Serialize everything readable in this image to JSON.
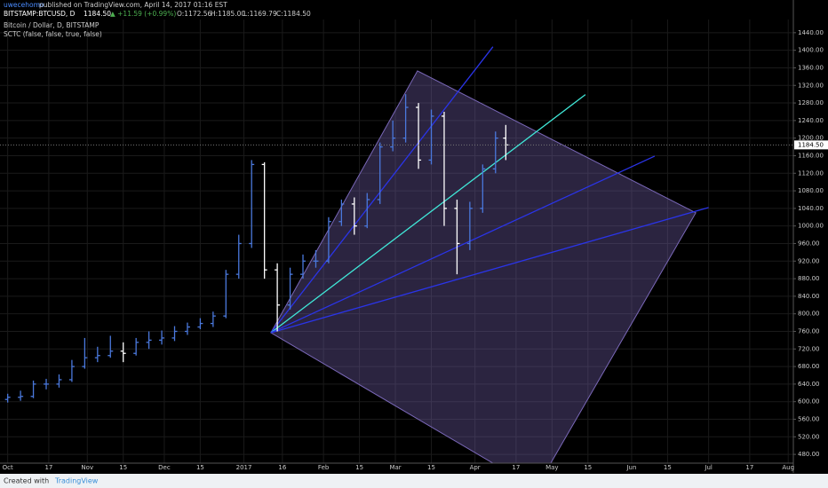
{
  "header": {
    "author": "uwecehomo",
    "published": "published on TradingView.com, April 14, 2017 01:16 EST",
    "symbol": "BITSTAMP:BTCUSD, D",
    "last": "1184.50",
    "change": "▲ +11.59 (+0.99%)",
    "open": "O:1172.56",
    "high": "H:1185.00",
    "low": "L:1169.79",
    "close": "C:1184.50",
    "name": "Bitcoin / Dollar, D, BITSTAMP",
    "indicator": "SCTC (false, false, true, false)"
  },
  "chart_data": {
    "type": "ohlc",
    "x": [
      0,
      5,
      10,
      15,
      20,
      25,
      30,
      35,
      40,
      45,
      50,
      55,
      60,
      65,
      70,
      75,
      80,
      85,
      90,
      95,
      100,
      105,
      110,
      115,
      120,
      125,
      130,
      135,
      140,
      145,
      150,
      155,
      160,
      165,
      170,
      175,
      180,
      185,
      190,
      194
    ],
    "open": [
      605,
      610,
      612,
      640,
      640,
      650,
      680,
      700,
      705,
      715,
      710,
      735,
      740,
      745,
      760,
      770,
      778,
      795,
      890,
      960,
      1140,
      900,
      820,
      890,
      920,
      920,
      1010,
      1050,
      1000,
      1060,
      1180,
      1200,
      1270,
      1150,
      1250,
      1040,
      960,
      1040,
      1130,
      1200
    ],
    "high": [
      618,
      625,
      648,
      652,
      662,
      695,
      745,
      725,
      750,
      735,
      745,
      760,
      762,
      772,
      780,
      790,
      805,
      900,
      980,
      1150,
      1145,
      915,
      905,
      935,
      945,
      1020,
      1060,
      1065,
      1075,
      1190,
      1240,
      1300,
      1280,
      1265,
      1260,
      1060,
      1055,
      1140,
      1215,
      1230
    ],
    "low": [
      598,
      602,
      608,
      628,
      632,
      645,
      675,
      690,
      700,
      690,
      705,
      720,
      730,
      738,
      752,
      765,
      770,
      790,
      880,
      950,
      880,
      760,
      810,
      880,
      905,
      915,
      1000,
      980,
      995,
      1050,
      1170,
      1190,
      1130,
      1140,
      1000,
      890,
      945,
      1030,
      1120,
      1150
    ],
    "close": [
      610,
      612,
      640,
      640,
      650,
      680,
      700,
      705,
      715,
      710,
      735,
      740,
      745,
      760,
      770,
      778,
      795,
      890,
      960,
      1140,
      900,
      820,
      890,
      920,
      920,
      1010,
      1050,
      1000,
      1060,
      1180,
      1200,
      1270,
      1150,
      1250,
      1040,
      960,
      1040,
      1130,
      1200,
      1184.5
    ],
    "up_color": "#4a78dc",
    "down_color": "#ffffff",
    "xlim": [
      -3,
      306
    ],
    "xticks": [
      {
        "value": 0,
        "label": "Oct"
      },
      {
        "value": 16,
        "label": "17"
      },
      {
        "value": 31,
        "label": "Nov"
      },
      {
        "value": 45,
        "label": "15"
      },
      {
        "value": 61,
        "label": "Dec"
      },
      {
        "value": 75,
        "label": "15"
      },
      {
        "value": 92,
        "label": "2017"
      },
      {
        "value": 107,
        "label": "16"
      },
      {
        "value": 123,
        "label": "Feb"
      },
      {
        "value": 137,
        "label": "15"
      },
      {
        "value": 151,
        "label": "Mar"
      },
      {
        "value": 165,
        "label": "15"
      },
      {
        "value": 182,
        "label": "Apr"
      },
      {
        "value": 198,
        "label": "17"
      },
      {
        "value": 212,
        "label": "May"
      },
      {
        "value": 226,
        "label": "15"
      },
      {
        "value": 243,
        "label": "Jun"
      },
      {
        "value": 257,
        "label": "15"
      },
      {
        "value": 273,
        "label": "Jul"
      },
      {
        "value": 289,
        "label": "17"
      },
      {
        "value": 304,
        "label": "Aug"
      }
    ],
    "ylim": [
      460,
      1470
    ],
    "yticks": [
      {
        "value": 480,
        "label": "480.00"
      },
      {
        "value": 520,
        "label": "520.00"
      },
      {
        "value": 560,
        "label": "560.00"
      },
      {
        "value": 600,
        "label": "600.00"
      },
      {
        "value": 640,
        "label": "640.00"
      },
      {
        "value": 680,
        "label": "680.00"
      },
      {
        "value": 720,
        "label": "720.00"
      },
      {
        "value": 760,
        "label": "760.00"
      },
      {
        "value": 800,
        "label": "800.00"
      },
      {
        "value": 840,
        "label": "840.00"
      },
      {
        "value": 880,
        "label": "880.00"
      },
      {
        "value": 920,
        "label": "920.00"
      },
      {
        "value": 960,
        "label": "960.00"
      },
      {
        "value": 1000,
        "label": "1000.00"
      },
      {
        "value": 1040,
        "label": "1040.00"
      },
      {
        "value": 1080,
        "label": "1080.00"
      },
      {
        "value": 1120,
        "label": "1120.00"
      },
      {
        "value": 1160,
        "label": "1160.00"
      },
      {
        "value": 1200,
        "label": "1200.00"
      },
      {
        "value": 1240,
        "label": "1240.00"
      },
      {
        "value": 1280,
        "label": "1280.00"
      },
      {
        "value": 1320,
        "label": "1320.00"
      },
      {
        "value": 1360,
        "label": "1360.00"
      },
      {
        "value": 1400,
        "label": "1400.00"
      },
      {
        "value": 1440,
        "label": "1440.00"
      }
    ],
    "grid": true,
    "last_price_label": "1184.50",
    "drawings": [
      {
        "type": "polygon",
        "color": "#7a68b8",
        "x": [
          102.5,
          159.6,
          268,
          211.5,
          189
        ],
        "y": [
          757,
          1353,
          1030,
          460,
          460
        ]
      },
      {
        "type": "line",
        "color": "#2a34e8",
        "x": [
          102.5,
          189
        ],
        "y": [
          757,
          1408
        ]
      },
      {
        "type": "line",
        "color": "#40e8d8",
        "x": [
          102.5,
          225
        ],
        "y": [
          757,
          1299
        ]
      },
      {
        "type": "line",
        "color": "#2a34e8",
        "x": [
          102.5,
          252
        ],
        "y": [
          757,
          1159
        ]
      },
      {
        "type": "line",
        "color": "#2a34e8",
        "x": [
          102.5,
          273
        ],
        "y": [
          757,
          1042
        ]
      }
    ]
  },
  "footer": {
    "created": "Created with",
    "brand": "TradingView"
  }
}
